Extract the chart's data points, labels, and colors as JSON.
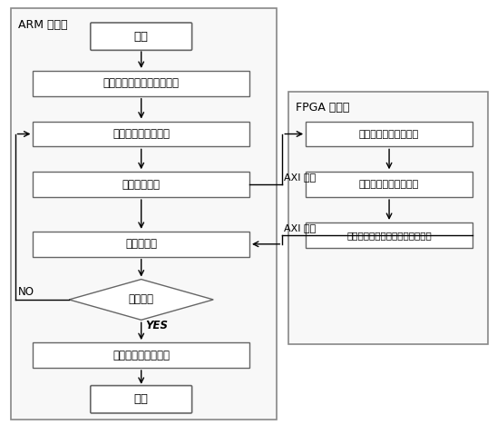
{
  "background_color": "#ffffff",
  "text_color": "#000000",
  "box_edge_color": "#666666",
  "arm_label": "ARM 主机端",
  "fpga_label": "FPGA 设备端",
  "axi_label1": "AXI 总线",
  "axi_label2": "AXI 总线",
  "yes_label": "YES",
  "no_label": "NO",
  "nodes": {
    "start": {
      "label": "开始"
    },
    "init": {
      "label": "环境参数设置及平台初始化"
    },
    "create": {
      "label": "创建内核及内存分配"
    },
    "call": {
      "label": "调用内核程序"
    },
    "centroid": {
      "label": "新质心计算"
    },
    "iter": {
      "label": "迭代判断"
    },
    "release": {
      "label": "释放内核与内存资源"
    },
    "end": {
      "label": "结束"
    },
    "kernel1": {
      "label": "内核一：距离矩阵计算"
    },
    "kernel2": {
      "label": "重构内核二，进行归类"
    },
    "kernel3": {
      "label": "重构内核三，距离累加及点数统计"
    }
  }
}
